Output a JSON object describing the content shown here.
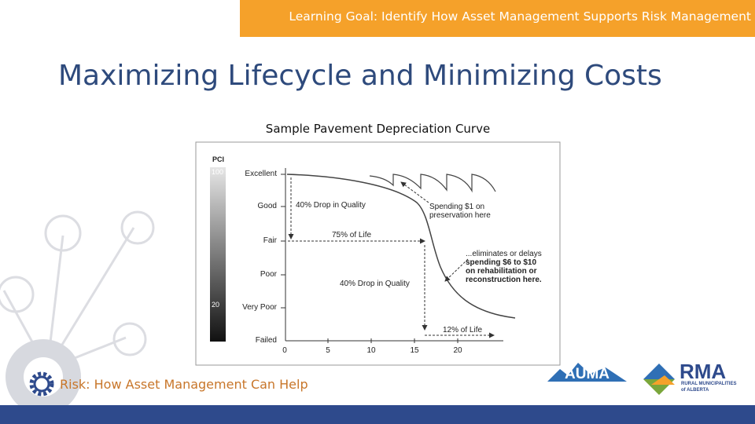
{
  "banner": "Learning Goal: Identify How Asset Management Supports Risk Management",
  "title": "Maximizing Lifecycle and Minimizing Costs",
  "figure": {
    "caption": "Sample Pavement Depreciation Curve",
    "y_axis_title": "PCI",
    "pci_scale": [
      "100",
      "20"
    ],
    "condition_levels": [
      "Excellent",
      "Good",
      "Fair",
      "Poor",
      "Very Poor",
      "Failed"
    ],
    "x_ticks": [
      "0",
      "5",
      "10",
      "15",
      "20"
    ],
    "annotations": {
      "drop_1": "40% Drop in Quality",
      "life_1": "75% of Life",
      "drop_2": "40% Drop in Quality",
      "life_2": "12% of Life",
      "spending": [
        "Spending $1 on",
        "preservation here"
      ],
      "eliminates": [
        "...eliminates or delays",
        "spending $6 to $10",
        "on rehabilitation or",
        "reconstruction here."
      ]
    }
  },
  "footer": {
    "section": "Risk: How Asset Management Can Help",
    "logos": [
      "AUMA",
      "RMA",
      "RURAL MUNICIPALITIES",
      "of ALBERTA"
    ]
  }
}
